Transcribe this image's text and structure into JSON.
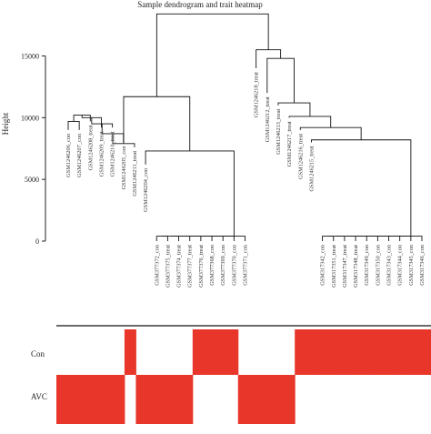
{
  "figure": {
    "title": "Sample dendrogram and trait heatmap",
    "ylabel": "Height",
    "yticks": [
      "0",
      "5000",
      "10000",
      "15000"
    ],
    "trait_rows": [
      "Con",
      "AVC"
    ],
    "colors": {
      "heat": "#e8372a",
      "line": "#111111",
      "text": "#222222"
    }
  },
  "dendrogram": {
    "ylim": [
      0,
      18500
    ],
    "leaves": [
      {
        "label": "GSM1246206_con",
        "con": 0
      },
      {
        "label": "GSM1246207_con",
        "con": 0
      },
      {
        "label": "GSM1246208_treat",
        "con": 0
      },
      {
        "label": "GSM1246209_treat",
        "con": 0
      },
      {
        "label": "GSM1246210_treat",
        "con": 0
      },
      {
        "label": "GSM1246205_con",
        "con": 0
      },
      {
        "label": "GSM1246211_treat",
        "con": 1
      },
      {
        "label": "GSM1246204_con",
        "con": 0
      },
      {
        "label": "GSM377372_con",
        "con": 0
      },
      {
        "label": "GSM377375_treat",
        "con": 0
      },
      {
        "label": "GSM377374_treat",
        "con": 0
      },
      {
        "label": "GSM377377_treat",
        "con": 0
      },
      {
        "label": "GSM377376_treat",
        "con": 1
      },
      {
        "label": "GSM377368_con",
        "con": 1
      },
      {
        "label": "GSM377369_con",
        "con": 1
      },
      {
        "label": "GSM377370_con",
        "con": 1
      },
      {
        "label": "GSM377371_con",
        "con": 0
      },
      {
        "label": "GSM1246218_treat",
        "con": 0
      },
      {
        "label": "GSM1246212_treat",
        "con": 0
      },
      {
        "label": "GSM1246213_treat",
        "con": 0
      },
      {
        "label": "GSM1246217_treat",
        "con": 0
      },
      {
        "label": "GSM1246216_treat",
        "con": 1
      },
      {
        "label": "GSM1246215_treat",
        "con": 1
      },
      {
        "label": "GSM317342_con",
        "con": 1
      },
      {
        "label": "GSM317351_treat",
        "con": 1
      },
      {
        "label": "GSM317347_treat",
        "con": 1
      },
      {
        "label": "GSM317348_treat",
        "con": 1
      },
      {
        "label": "GSM317349_con",
        "con": 1
      },
      {
        "label": "GSM317350_con",
        "con": 1
      },
      {
        "label": "GSM317343_con",
        "con": 1
      },
      {
        "label": "GSM317344_con",
        "con": 1
      },
      {
        "label": "GSM317345_con",
        "con": 1
      },
      {
        "label": "GSM317346_con",
        "con": 1
      }
    ],
    "leaf_heights": [
      9000,
      9000,
      9700,
      9200,
      9200,
      8000,
      7600,
      6200,
      0,
      0,
      0,
      0,
      0,
      0,
      0,
      0,
      0,
      14000,
      12000,
      11000,
      10000,
      9000,
      8000,
      0,
      0,
      0,
      0,
      0,
      0,
      0,
      0,
      0,
      0
    ],
    "merges": [
      [
        0,
        1,
        9700
      ],
      [
        -1,
        2,
        10200
      ],
      [
        -2,
        3,
        10000
      ],
      [
        -3,
        4,
        9500
      ],
      [
        -4,
        5,
        8700
      ],
      [
        -5,
        6,
        7900
      ],
      [
        8,
        9,
        400
      ],
      [
        -7,
        10,
        400
      ],
      [
        -8,
        11,
        400
      ],
      [
        -9,
        12,
        400
      ],
      [
        -10,
        13,
        400
      ],
      [
        -11,
        14,
        400
      ],
      [
        -12,
        15,
        400
      ],
      [
        -13,
        16,
        400
      ],
      [
        7,
        -14,
        7300
      ],
      [
        -6,
        -15,
        11700
      ],
      [
        23,
        24,
        400
      ],
      [
        -17,
        25,
        400
      ],
      [
        -18,
        26,
        400
      ],
      [
        -19,
        27,
        400
      ],
      [
        -20,
        28,
        400
      ],
      [
        -21,
        29,
        400
      ],
      [
        -22,
        30,
        400
      ],
      [
        -23,
        31,
        400
      ],
      [
        -24,
        32,
        400
      ],
      [
        22,
        -25,
        8200
      ],
      [
        21,
        -26,
        9200
      ],
      [
        20,
        -27,
        10100
      ],
      [
        19,
        -28,
        11200
      ],
      [
        18,
        -29,
        14800
      ],
      [
        17,
        -30,
        15500
      ],
      [
        -16,
        -31,
        18400
      ]
    ]
  }
}
